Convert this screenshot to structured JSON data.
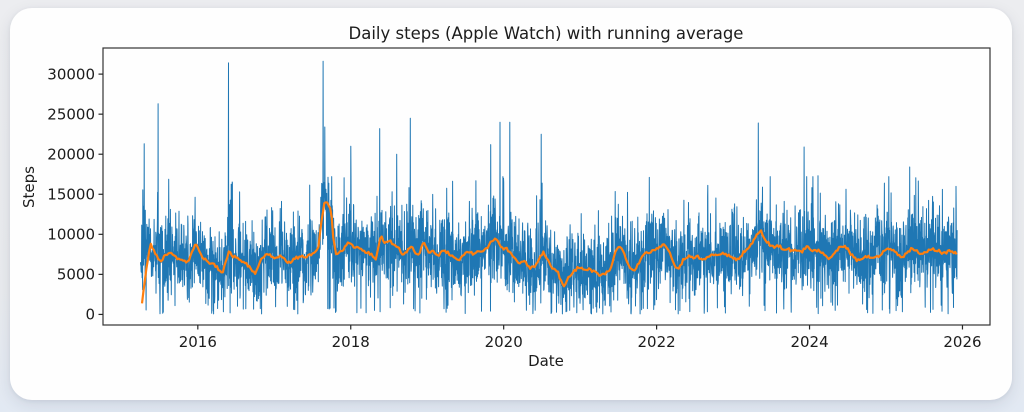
{
  "page": {
    "background": "#e9ebee",
    "card_background": "#fefefe"
  },
  "axes_style": {
    "spine_color": "#333333",
    "tick_color": "#262626",
    "label_color": "#1c1c1c"
  },
  "chart_data": {
    "type": "line",
    "title": "Daily steps (Apple Watch) with running average",
    "xlabel": "Date",
    "ylabel": "Steps",
    "x_ticks": [
      2016,
      2018,
      2020,
      2022,
      2024,
      2026
    ],
    "y_ticks": [
      0,
      5000,
      10000,
      15000,
      20000,
      25000,
      30000
    ],
    "xlim": [
      2014.76,
      2026.36
    ],
    "ylim": [
      -1320,
      33260
    ],
    "grid": false,
    "legend": "none",
    "series": [
      {
        "name": "Daily steps",
        "role": "daily",
        "color": "#1f77b4",
        "line_width": 1,
        "x_range": [
          2015.25,
          2025.93
        ],
        "band": {
          "mean_source": "running_average",
          "std": 2500,
          "seed": 7,
          "low_day_prob": 0.02,
          "high_day_prob": 0.028,
          "clamp_max": 17200,
          "mean_warmup_until": 2015.45
        },
        "spikes": [
          [
            2015.3,
            21300
          ],
          [
            2015.48,
            26300
          ],
          [
            2016.4,
            31400
          ],
          [
            2017.64,
            31600
          ],
          [
            2017.66,
            23400
          ],
          [
            2018.0,
            21000
          ],
          [
            2018.38,
            23200
          ],
          [
            2018.6,
            20000
          ],
          [
            2018.78,
            24500
          ],
          [
            2019.83,
            21200
          ],
          [
            2019.95,
            24000
          ],
          [
            2020.08,
            24000
          ],
          [
            2020.49,
            22500
          ],
          [
            2023.33,
            23900
          ],
          [
            2023.93,
            20900
          ],
          [
            2024.11,
            17300
          ],
          [
            2025.31,
            18400
          ]
        ],
        "low_gaps": [
          [
            2015.54,
            150
          ],
          [
            2017.8,
            250
          ],
          [
            2020.62,
            120
          ]
        ]
      },
      {
        "name": "Running average",
        "role": "average",
        "color": "#ff7f0e",
        "line_width": 2.2,
        "points": [
          [
            2015.27,
            1500
          ],
          [
            2015.32,
            5200
          ],
          [
            2015.38,
            8800
          ],
          [
            2015.45,
            7600
          ],
          [
            2015.51,
            6600
          ],
          [
            2015.58,
            7400
          ],
          [
            2015.63,
            7900
          ],
          [
            2015.7,
            7200
          ],
          [
            2015.77,
            6900
          ],
          [
            2015.83,
            6700
          ],
          [
            2015.87,
            6500
          ],
          [
            2015.92,
            7600
          ],
          [
            2015.97,
            8800
          ],
          [
            2016.03,
            7800
          ],
          [
            2016.08,
            6900
          ],
          [
            2016.13,
            6600
          ],
          [
            2016.19,
            6300
          ],
          [
            2016.25,
            5900
          ],
          [
            2016.32,
            5100
          ],
          [
            2016.37,
            6900
          ],
          [
            2016.41,
            7800
          ],
          [
            2016.46,
            7300
          ],
          [
            2016.51,
            7000
          ],
          [
            2016.58,
            6700
          ],
          [
            2016.63,
            6400
          ],
          [
            2016.69,
            5800
          ],
          [
            2016.75,
            4900
          ],
          [
            2016.8,
            6200
          ],
          [
            2016.85,
            7200
          ],
          [
            2016.91,
            7600
          ],
          [
            2016.97,
            7200
          ],
          [
            2017.02,
            7000
          ],
          [
            2017.08,
            7300
          ],
          [
            2017.14,
            6800
          ],
          [
            2017.19,
            6400
          ],
          [
            2017.25,
            6900
          ],
          [
            2017.3,
            7100
          ],
          [
            2017.36,
            7300
          ],
          [
            2017.42,
            7200
          ],
          [
            2017.48,
            7500
          ],
          [
            2017.54,
            7800
          ],
          [
            2017.58,
            8600
          ],
          [
            2017.62,
            12000
          ],
          [
            2017.66,
            14200
          ],
          [
            2017.7,
            13900
          ],
          [
            2017.74,
            13300
          ],
          [
            2017.77,
            9800
          ],
          [
            2017.81,
            7300
          ],
          [
            2017.85,
            7800
          ],
          [
            2017.89,
            8000
          ],
          [
            2017.94,
            8600
          ],
          [
            2017.99,
            9100
          ],
          [
            2018.04,
            8200
          ],
          [
            2018.1,
            8500
          ],
          [
            2018.16,
            7900
          ],
          [
            2018.22,
            7700
          ],
          [
            2018.28,
            7400
          ],
          [
            2018.33,
            7000
          ],
          [
            2018.39,
            9800
          ],
          [
            2018.45,
            9000
          ],
          [
            2018.52,
            9100
          ],
          [
            2018.58,
            8700
          ],
          [
            2018.63,
            8200
          ],
          [
            2018.69,
            7300
          ],
          [
            2018.75,
            8200
          ],
          [
            2018.8,
            8500
          ],
          [
            2018.85,
            7400
          ],
          [
            2018.9,
            7700
          ],
          [
            2018.96,
            9100
          ],
          [
            2019.02,
            7600
          ],
          [
            2019.08,
            7900
          ],
          [
            2019.14,
            7300
          ],
          [
            2019.2,
            7900
          ],
          [
            2019.27,
            7700
          ],
          [
            2019.33,
            7200
          ],
          [
            2019.4,
            6700
          ],
          [
            2019.46,
            7300
          ],
          [
            2019.53,
            7800
          ],
          [
            2019.6,
            7600
          ],
          [
            2019.66,
            8000
          ],
          [
            2019.73,
            7900
          ],
          [
            2019.79,
            8300
          ],
          [
            2019.86,
            9400
          ],
          [
            2019.92,
            9300
          ],
          [
            2019.98,
            8300
          ],
          [
            2020.04,
            8200
          ],
          [
            2020.1,
            7500
          ],
          [
            2020.16,
            6700
          ],
          [
            2020.22,
            6400
          ],
          [
            2020.28,
            6600
          ],
          [
            2020.34,
            5800
          ],
          [
            2020.4,
            6000
          ],
          [
            2020.46,
            6900
          ],
          [
            2020.52,
            7700
          ],
          [
            2020.58,
            6700
          ],
          [
            2020.64,
            5800
          ],
          [
            2020.7,
            5500
          ],
          [
            2020.75,
            4200
          ],
          [
            2020.79,
            3400
          ],
          [
            2020.83,
            4400
          ],
          [
            2020.88,
            5000
          ],
          [
            2020.93,
            5500
          ],
          [
            2020.99,
            6000
          ],
          [
            2021.05,
            5600
          ],
          [
            2021.11,
            5700
          ],
          [
            2021.17,
            5400
          ],
          [
            2021.23,
            5000
          ],
          [
            2021.29,
            4900
          ],
          [
            2021.35,
            5200
          ],
          [
            2021.41,
            5800
          ],
          [
            2021.46,
            7900
          ],
          [
            2021.52,
            8500
          ],
          [
            2021.58,
            7400
          ],
          [
            2021.64,
            5900
          ],
          [
            2021.7,
            5400
          ],
          [
            2021.76,
            6300
          ],
          [
            2021.82,
            7400
          ],
          [
            2021.88,
            7700
          ],
          [
            2021.94,
            7900
          ],
          [
            2022.0,
            8100
          ],
          [
            2022.06,
            8600
          ],
          [
            2022.11,
            8800
          ],
          [
            2022.17,
            7900
          ],
          [
            2022.23,
            6100
          ],
          [
            2022.29,
            5600
          ],
          [
            2022.35,
            6900
          ],
          [
            2022.41,
            7300
          ],
          [
            2022.48,
            7000
          ],
          [
            2022.54,
            7200
          ],
          [
            2022.6,
            6800
          ],
          [
            2022.66,
            7200
          ],
          [
            2022.72,
            7500
          ],
          [
            2022.78,
            7400
          ],
          [
            2022.84,
            7500
          ],
          [
            2022.9,
            7600
          ],
          [
            2022.96,
            7200
          ],
          [
            2023.02,
            7000
          ],
          [
            2023.08,
            6800
          ],
          [
            2023.14,
            7800
          ],
          [
            2023.2,
            8200
          ],
          [
            2023.26,
            9100
          ],
          [
            2023.32,
            10200
          ],
          [
            2023.36,
            10500
          ],
          [
            2023.42,
            9400
          ],
          [
            2023.48,
            8700
          ],
          [
            2023.54,
            8300
          ],
          [
            2023.6,
            8600
          ],
          [
            2023.66,
            8000
          ],
          [
            2023.72,
            8200
          ],
          [
            2023.78,
            7900
          ],
          [
            2023.84,
            8000
          ],
          [
            2023.9,
            7800
          ],
          [
            2023.96,
            8500
          ],
          [
            2024.02,
            8100
          ],
          [
            2024.08,
            7900
          ],
          [
            2024.14,
            8000
          ],
          [
            2024.2,
            7400
          ],
          [
            2024.26,
            7000
          ],
          [
            2024.32,
            7600
          ],
          [
            2024.38,
            8200
          ],
          [
            2024.44,
            8600
          ],
          [
            2024.5,
            8100
          ],
          [
            2024.56,
            7300
          ],
          [
            2024.62,
            6800
          ],
          [
            2024.68,
            7000
          ],
          [
            2024.74,
            7300
          ],
          [
            2024.8,
            7000
          ],
          [
            2024.86,
            7100
          ],
          [
            2024.92,
            7300
          ],
          [
            2024.98,
            7900
          ],
          [
            2025.04,
            8200
          ],
          [
            2025.1,
            7900
          ],
          [
            2025.16,
            7400
          ],
          [
            2025.22,
            7200
          ],
          [
            2025.28,
            7800
          ],
          [
            2025.34,
            8200
          ],
          [
            2025.4,
            7900
          ],
          [
            2025.46,
            7400
          ],
          [
            2025.52,
            7800
          ],
          [
            2025.58,
            8100
          ],
          [
            2025.64,
            8100
          ],
          [
            2025.7,
            7900
          ],
          [
            2025.76,
            7600
          ],
          [
            2025.82,
            7900
          ],
          [
            2025.88,
            7800
          ],
          [
            2025.93,
            7600
          ]
        ]
      }
    ]
  }
}
